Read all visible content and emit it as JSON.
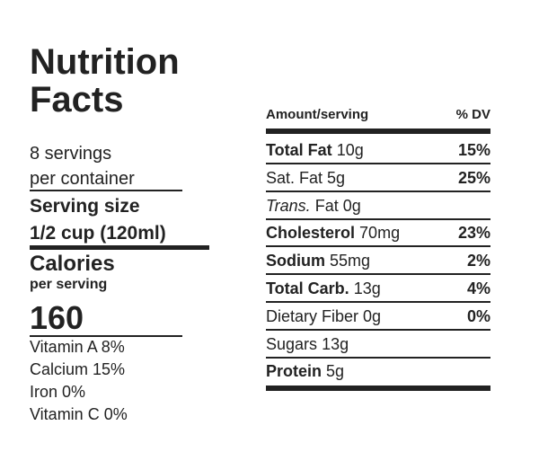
{
  "header": {
    "title": "Nutrition Facts"
  },
  "servings": {
    "line1": "8 servings",
    "line2": "per container"
  },
  "serving_size": {
    "label": "Serving size",
    "value": "1/2 cup (120ml)"
  },
  "calories": {
    "label": "Calories",
    "sublabel": "per serving",
    "value": "160"
  },
  "vitamins": [
    "Vitamin A 8%",
    "Calcium 15%",
    "Iron 0%",
    "Vitamin C 0%"
  ],
  "table": {
    "header": {
      "amount": "Amount/serving",
      "dv": "% DV"
    },
    "rows": [
      {
        "name": "Total Fat",
        "amount": "10g",
        "dv": "15%",
        "bold": true
      },
      {
        "name": "Sat. Fat",
        "amount": "5g",
        "dv": "25%",
        "bold": false
      },
      {
        "name": "Trans.",
        "suffix": "Fat",
        "amount": "0g",
        "bold": false,
        "italic": true
      },
      {
        "name": "Cholesterol",
        "amount": "70mg",
        "dv": "23%",
        "bold": true
      },
      {
        "name": "Sodium",
        "amount": "55mg",
        "dv": "2%",
        "bold": true
      },
      {
        "name": "Total Carb.",
        "amount": "13g",
        "dv": "4%",
        "bold": true
      },
      {
        "name": "Dietary Fiber",
        "amount": "0g",
        "dv": "0%",
        "bold": false
      },
      {
        "name": "Sugars",
        "amount": "13g",
        "bold": false
      },
      {
        "name": "Protein",
        "amount": "5g",
        "bold": true
      }
    ]
  }
}
